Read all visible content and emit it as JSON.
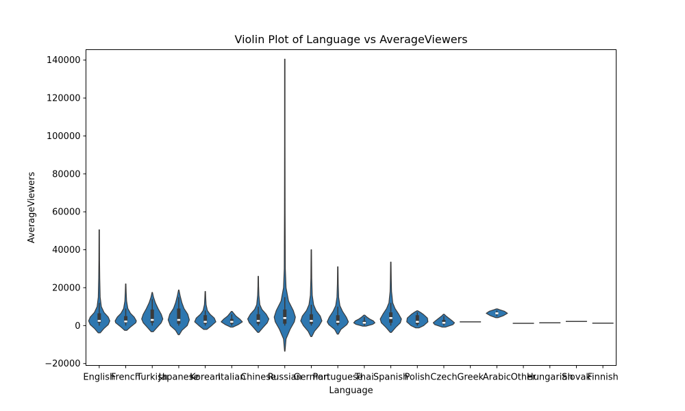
{
  "chart_data": {
    "type": "violin",
    "title": "Violin Plot of Language vs AverageViewers",
    "xlabel": "Language",
    "ylabel": "AverageViewers",
    "ylim": [
      -21000,
      145500
    ],
    "yticks": [
      -20000,
      0,
      20000,
      40000,
      60000,
      80000,
      100000,
      120000,
      140000
    ],
    "ytick_labels": [
      "−20000",
      "0",
      "20000",
      "40000",
      "60000",
      "80000",
      "100000",
      "120000",
      "140000"
    ],
    "grid": false,
    "color": "#2e77b0",
    "edge_color": "#3a3a3a",
    "categories": [
      "English",
      "French",
      "Turkish",
      "Japanese",
      "Korean",
      "Italian",
      "Chinese",
      "Russian",
      "German",
      "Portuguese",
      "Thai",
      "Spanish",
      "Polish",
      "Czech",
      "Greek",
      "Arabic",
      "Other",
      "Hungarian",
      "Slovak",
      "Finnish"
    ],
    "violins": [
      {
        "category": "English",
        "min": -3800,
        "max": 50500,
        "q1": 1500,
        "median": 2500,
        "q3": 6500,
        "whisker_low": 0,
        "whisker_high": 12000,
        "profile": [
          [
            -3800,
            0.1
          ],
          [
            -1500,
            0.45
          ],
          [
            500,
            0.85
          ],
          [
            2500,
            1.0
          ],
          [
            4500,
            0.85
          ],
          [
            7000,
            0.45
          ],
          [
            10000,
            0.2
          ],
          [
            15000,
            0.09
          ],
          [
            25000,
            0.05
          ],
          [
            35000,
            0.03
          ],
          [
            50500,
            0.02
          ]
        ]
      },
      {
        "category": "French",
        "min": -2500,
        "max": 22000,
        "q1": 1500,
        "median": 2200,
        "q3": 5000,
        "whisker_low": 0,
        "whisker_high": 9000,
        "profile": [
          [
            -2500,
            0.1
          ],
          [
            -500,
            0.5
          ],
          [
            1500,
            0.95
          ],
          [
            2500,
            1.0
          ],
          [
            4500,
            0.8
          ],
          [
            6500,
            0.45
          ],
          [
            9000,
            0.2
          ],
          [
            13000,
            0.08
          ],
          [
            18000,
            0.04
          ],
          [
            22000,
            0.02
          ]
        ]
      },
      {
        "category": "Turkish",
        "min": -3200,
        "max": 17500,
        "q1": 1500,
        "median": 3000,
        "q3": 8500,
        "whisker_low": 0,
        "whisker_high": 14000,
        "profile": [
          [
            -3200,
            0.1
          ],
          [
            -1000,
            0.45
          ],
          [
            1500,
            0.85
          ],
          [
            3500,
            1.0
          ],
          [
            6000,
            0.85
          ],
          [
            9000,
            0.55
          ],
          [
            12000,
            0.3
          ],
          [
            15000,
            0.12
          ],
          [
            17500,
            0.02
          ]
        ]
      },
      {
        "category": "Japanese",
        "min": -4800,
        "max": 18800,
        "q1": 1000,
        "median": 3000,
        "q3": 9000,
        "whisker_low": 0,
        "whisker_high": 15000,
        "profile": [
          [
            -4800,
            0.05
          ],
          [
            -2500,
            0.3
          ],
          [
            0,
            0.8
          ],
          [
            3000,
            1.0
          ],
          [
            6000,
            0.85
          ],
          [
            9000,
            0.5
          ],
          [
            12000,
            0.3
          ],
          [
            15500,
            0.14
          ],
          [
            18800,
            0.02
          ]
        ]
      },
      {
        "category": "Korean",
        "min": -2000,
        "max": 18000,
        "q1": 1000,
        "median": 2000,
        "q3": 5500,
        "whisker_low": 0,
        "whisker_high": 8000,
        "profile": [
          [
            -2000,
            0.15
          ],
          [
            0,
            0.6
          ],
          [
            2000,
            1.0
          ],
          [
            4000,
            0.85
          ],
          [
            6000,
            0.45
          ],
          [
            8000,
            0.2
          ],
          [
            11000,
            0.08
          ],
          [
            15000,
            0.04
          ],
          [
            18000,
            0.02
          ]
        ]
      },
      {
        "category": "Italian",
        "min": -800,
        "max": 7500,
        "q1": 1000,
        "median": 2000,
        "q3": 3500,
        "whisker_low": 0,
        "whisker_high": 6000,
        "profile": [
          [
            -800,
            0.1
          ],
          [
            500,
            0.6
          ],
          [
            2000,
            1.0
          ],
          [
            3500,
            0.75
          ],
          [
            5000,
            0.4
          ],
          [
            6500,
            0.18
          ],
          [
            7500,
            0.04
          ]
        ]
      },
      {
        "category": "Chinese",
        "min": -3600,
        "max": 26000,
        "q1": 1000,
        "median": 2500,
        "q3": 6000,
        "whisker_low": 0,
        "whisker_high": 10000,
        "profile": [
          [
            -3600,
            0.05
          ],
          [
            -1000,
            0.45
          ],
          [
            1500,
            0.85
          ],
          [
            3500,
            1.0
          ],
          [
            6000,
            0.75
          ],
          [
            8500,
            0.35
          ],
          [
            11000,
            0.15
          ],
          [
            16000,
            0.06
          ],
          [
            21000,
            0.03
          ],
          [
            26000,
            0.02
          ]
        ]
      },
      {
        "category": "Russian",
        "min": -13500,
        "max": 140500,
        "q1": 1000,
        "median": 4000,
        "q3": 8500,
        "whisker_low": 0,
        "whisker_high": 15000,
        "profile": [
          [
            -13500,
            0.02
          ],
          [
            -7000,
            0.12
          ],
          [
            -2000,
            0.5
          ],
          [
            2000,
            0.9
          ],
          [
            4500,
            1.0
          ],
          [
            8000,
            0.8
          ],
          [
            13000,
            0.35
          ],
          [
            20000,
            0.12
          ],
          [
            30000,
            0.05
          ],
          [
            60000,
            0.03
          ],
          [
            100000,
            0.02
          ],
          [
            140500,
            0.02
          ]
        ]
      },
      {
        "category": "German",
        "min": -5800,
        "max": 40000,
        "q1": 1000,
        "median": 2500,
        "q3": 6000,
        "whisker_low": 0,
        "whisker_high": 11000,
        "profile": [
          [
            -5800,
            0.05
          ],
          [
            -3000,
            0.3
          ],
          [
            0,
            0.75
          ],
          [
            2500,
            1.0
          ],
          [
            5000,
            0.85
          ],
          [
            8000,
            0.45
          ],
          [
            11000,
            0.22
          ],
          [
            16000,
            0.09
          ],
          [
            25000,
            0.04
          ],
          [
            40000,
            0.02
          ]
        ]
      },
      {
        "category": "Portuguese",
        "min": -4500,
        "max": 31000,
        "q1": 800,
        "median": 2000,
        "q3": 5500,
        "whisker_low": 0,
        "whisker_high": 10000,
        "profile": [
          [
            -4500,
            0.05
          ],
          [
            -2000,
            0.3
          ],
          [
            500,
            0.85
          ],
          [
            2000,
            1.0
          ],
          [
            4500,
            0.8
          ],
          [
            7500,
            0.45
          ],
          [
            10500,
            0.2
          ],
          [
            15000,
            0.08
          ],
          [
            22000,
            0.04
          ],
          [
            31000,
            0.02
          ]
        ]
      },
      {
        "category": "Thai",
        "min": -300,
        "max": 5500,
        "q1": 800,
        "median": 1500,
        "q3": 2500,
        "whisker_low": 0,
        "whisker_high": 4500,
        "profile": [
          [
            -300,
            0.15
          ],
          [
            700,
            0.8
          ],
          [
            1500,
            1.0
          ],
          [
            2500,
            0.85
          ],
          [
            3500,
            0.5
          ],
          [
            4500,
            0.25
          ],
          [
            5500,
            0.05
          ]
        ]
      },
      {
        "category": "Spanish",
        "min": -3600,
        "max": 33500,
        "q1": 1500,
        "median": 4000,
        "q3": 7000,
        "whisker_low": 0,
        "whisker_high": 12000,
        "profile": [
          [
            -3600,
            0.05
          ],
          [
            -1000,
            0.45
          ],
          [
            1500,
            0.9
          ],
          [
            3500,
            1.0
          ],
          [
            6000,
            0.75
          ],
          [
            9000,
            0.4
          ],
          [
            12000,
            0.18
          ],
          [
            18000,
            0.07
          ],
          [
            25000,
            0.04
          ],
          [
            33500,
            0.02
          ]
        ]
      },
      {
        "category": "Polish",
        "min": -1200,
        "max": 7800,
        "q1": 800,
        "median": 2000,
        "q3": 5500,
        "whisker_low": 0,
        "whisker_high": 7000,
        "profile": [
          [
            -1200,
            0.15
          ],
          [
            0,
            0.6
          ],
          [
            2000,
            1.0
          ],
          [
            4000,
            0.95
          ],
          [
            6000,
            0.55
          ],
          [
            7000,
            0.3
          ],
          [
            7800,
            0.05
          ]
        ]
      },
      {
        "category": "Czech",
        "min": -800,
        "max": 6000,
        "q1": 800,
        "median": 1500,
        "q3": 3000,
        "whisker_low": 0,
        "whisker_high": 5000,
        "profile": [
          [
            -800,
            0.15
          ],
          [
            500,
            0.85
          ],
          [
            1500,
            1.0
          ],
          [
            2500,
            0.8
          ],
          [
            4000,
            0.45
          ],
          [
            5200,
            0.18
          ],
          [
            6000,
            0.04
          ]
        ]
      },
      {
        "category": "Greek",
        "single_value": 2000
      },
      {
        "category": "Arabic",
        "min": 4200,
        "max": 8800,
        "q1": 6000,
        "median": 6500,
        "q3": 7000,
        "whisker_low": 5000,
        "whisker_high": 8000,
        "profile": [
          [
            4200,
            0.12
          ],
          [
            5200,
            0.6
          ],
          [
            6500,
            1.0
          ],
          [
            7600,
            0.7
          ],
          [
            8400,
            0.25
          ],
          [
            8800,
            0.06
          ]
        ]
      },
      {
        "category": "Other",
        "single_value": 1200
      },
      {
        "category": "Hungarian",
        "single_value": 1500
      },
      {
        "category": "Slovak",
        "single_value": 2200
      },
      {
        "category": "Finnish",
        "single_value": 1300
      }
    ]
  }
}
